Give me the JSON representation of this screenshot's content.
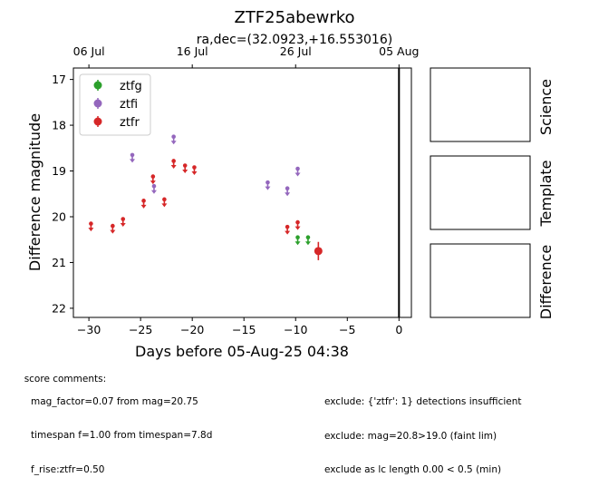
{
  "title": "ZTF25abewrko",
  "subtitle": "ra,dec=(32.0923,+16.553016)",
  "chart_data": {
    "type": "scatter",
    "title": "ZTF25abewrko",
    "subtitle": "ra,dec=(32.0923,+16.553016)",
    "xlabel": "Days before 05-Aug-25 04:38",
    "ylabel": "Difference magnitude",
    "xlim": [
      -31.5,
      1.2
    ],
    "ylim": [
      22.2,
      16.75
    ],
    "y_inverted": true,
    "xticks": [
      -30,
      -25,
      -20,
      -15,
      -10,
      -5,
      0
    ],
    "xtick_labels": [
      "−30",
      "−25",
      "−20",
      "−15",
      "−10",
      "−5",
      "0"
    ],
    "yticks": [
      17,
      18,
      19,
      20,
      21,
      22
    ],
    "ytick_labels": [
      "17",
      "18",
      "19",
      "20",
      "21",
      "22"
    ],
    "top_axis": {
      "ticks": [
        -30,
        -20,
        -10,
        0
      ],
      "labels": [
        "06 Jul",
        "16 Jul",
        "26 Jul",
        "05 Aug"
      ]
    },
    "vertical_line_x": 0,
    "legend_position": "upper-left",
    "series": [
      {
        "name": "ztfg",
        "color": "#2ca02c",
        "upper_limits": [
          {
            "x": -9.8,
            "y": 20.5
          },
          {
            "x": -8.8,
            "y": 20.5
          }
        ],
        "detections": []
      },
      {
        "name": "ztfi",
        "color": "#9467bd",
        "upper_limits": [
          {
            "x": -25.8,
            "y": 18.7
          },
          {
            "x": -23.7,
            "y": 19.38
          },
          {
            "x": -21.8,
            "y": 18.3
          },
          {
            "x": -12.7,
            "y": 19.3
          },
          {
            "x": -10.8,
            "y": 19.43
          },
          {
            "x": -9.8,
            "y": 19.0
          }
        ],
        "detections": []
      },
      {
        "name": "ztfr",
        "color": "#d62728",
        "upper_limits": [
          {
            "x": -29.8,
            "y": 20.2
          },
          {
            "x": -27.7,
            "y": 20.25
          },
          {
            "x": -26.7,
            "y": 20.1
          },
          {
            "x": -24.7,
            "y": 19.7
          },
          {
            "x": -23.8,
            "y": 19.17
          },
          {
            "x": -22.7,
            "y": 19.67
          },
          {
            "x": -21.8,
            "y": 18.83
          },
          {
            "x": -20.7,
            "y": 18.93
          },
          {
            "x": -19.8,
            "y": 18.97
          },
          {
            "x": -10.8,
            "y": 20.27
          },
          {
            "x": -9.8,
            "y": 20.17
          }
        ],
        "detections": [
          {
            "x": -7.8,
            "y": 20.75,
            "err": 0.2
          }
        ]
      }
    ]
  },
  "panels": {
    "science": "Science",
    "template": "Template",
    "difference": "Difference"
  },
  "comments": {
    "header": "score comments:",
    "lines": [
      "mag_factor=0.07 from mag=20.75",
      "timespan f=1.00 from timespan=7.8d",
      "f_rise:ztfr=0.50"
    ],
    "exclude": [
      "exclude: {'ztfr': 1} detections insufficient",
      "exclude: mag=20.8>19.0 (faint lim)",
      "exclude as lc length 0.00 < 0.5 (min)"
    ]
  }
}
